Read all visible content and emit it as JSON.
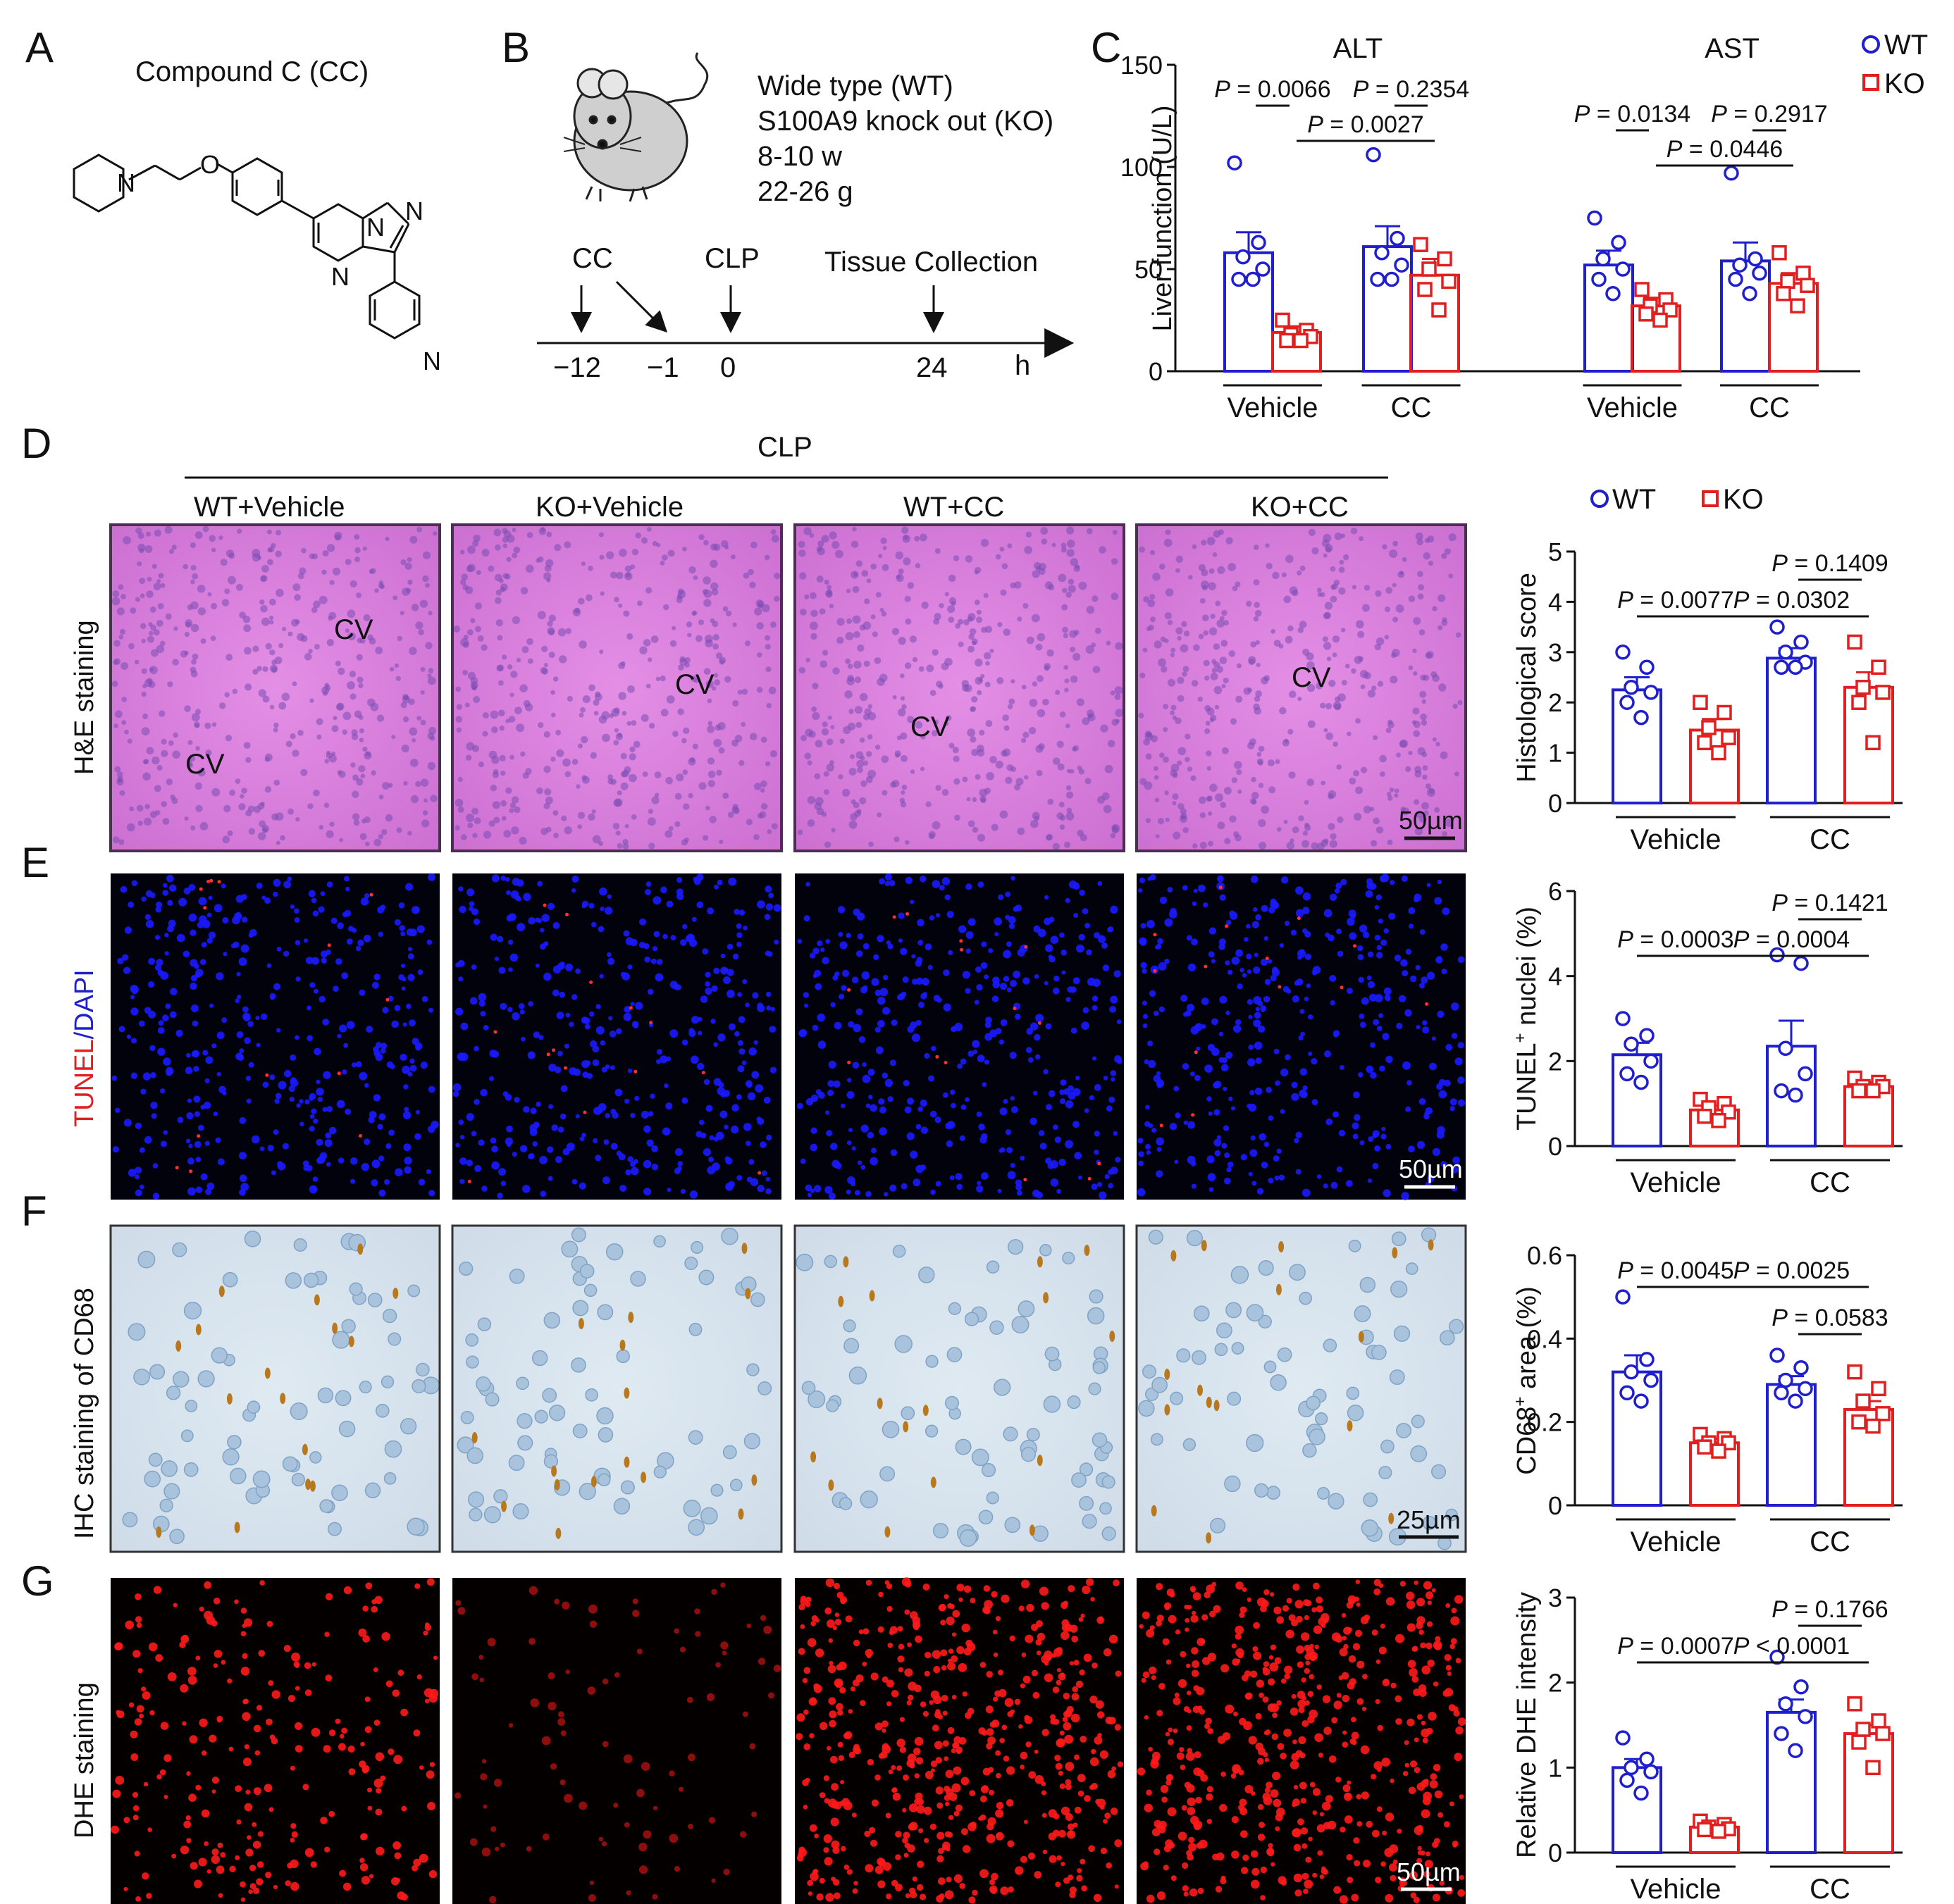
{
  "panel_letters": [
    "A",
    "B",
    "C",
    "D",
    "E",
    "F",
    "G"
  ],
  "panel_a": {
    "title": "Compound C (CC)",
    "atoms": [
      "N",
      "O",
      "N",
      "N",
      "N",
      "N"
    ]
  },
  "panel_b": {
    "info": [
      "Wide type (WT)",
      "S100A9 knock out (KO)",
      "8-10 w",
      "22-26 g"
    ],
    "events": [
      "CC",
      "CLP",
      "Tissue Collection"
    ],
    "ticks": [
      "−12",
      "−1",
      "0",
      "24"
    ],
    "unit": "h"
  },
  "legend": {
    "wt": "WT",
    "ko": "KO"
  },
  "colors": {
    "wt": "#1f1fd0",
    "ko": "#e02020"
  },
  "micro": {
    "header": "CLP",
    "groups": [
      "WT+Vehicle",
      "KO+Vehicle",
      "WT+CC",
      "KO+CC"
    ],
    "rows": [
      {
        "stain": "H&E staining",
        "scale": "50µm",
        "cv_labels": [
          "CV",
          "CV",
          "CV",
          "CV",
          "CV"
        ]
      },
      {
        "stain_parts": [
          "TUNEL",
          "/DAPI"
        ],
        "scale": "50µm"
      },
      {
        "stain": "IHC staining of CD68",
        "scale": "25µm"
      },
      {
        "stain": "DHE staining",
        "scale": "50µm"
      }
    ]
  },
  "chart_data": [
    {
      "type": "bar",
      "panel": "C",
      "ylabel": "Liver function (U/L)",
      "ylim": [
        0,
        150
      ],
      "yticks": [
        "0",
        "50",
        "100",
        "150"
      ],
      "subplots": [
        {
          "title": "ALT",
          "categories": [
            "Vehicle",
            "CC"
          ],
          "series": [
            {
              "name": "WT",
              "values": [
                58,
                61
              ],
              "sem": [
                10,
                10
              ],
              "points": [
                [
                  102,
                  63,
                  56,
                  50,
                  45,
                  45
                ],
                [
                  106,
                  65,
                  58,
                  52,
                  45,
                  45
                ]
              ]
            },
            {
              "name": "KO",
              "values": [
                19,
                47
              ],
              "sem": [
                3,
                8
              ],
              "points": [
                [
                  25,
                  20,
                  18,
                  17,
                  15,
                  15
                ],
                [
                  62,
                  55,
                  50,
                  44,
                  40,
                  30
                ]
              ]
            }
          ],
          "pvalues": [
            "P = 0.0066",
            "P = 0.2354",
            "P = 0.0027"
          ]
        },
        {
          "title": "AST",
          "categories": [
            "Vehicle",
            "CC"
          ],
          "series": [
            {
              "name": "WT",
              "values": [
                52,
                54
              ],
              "sem": [
                7,
                9
              ],
              "points": [
                [
                  75,
                  63,
                  55,
                  50,
                  45,
                  38
                ],
                [
                  97,
                  55,
                  52,
                  48,
                  45,
                  38
                ]
              ]
            },
            {
              "name": "KO",
              "values": [
                32,
                43
              ],
              "sem": [
                4,
                5
              ],
              "points": [
                [
                  40,
                  35,
                  32,
                  30,
                  28,
                  25
                ],
                [
                  58,
                  48,
                  44,
                  42,
                  38,
                  32
                ]
              ]
            }
          ],
          "pvalues": [
            "P = 0.0134",
            "P = 0.2917",
            "P = 0.0446"
          ]
        }
      ]
    },
    {
      "type": "bar",
      "panel": "D",
      "ylabel": "Histological score",
      "ylim": [
        0,
        5
      ],
      "yticks": [
        "0",
        "1",
        "2",
        "3",
        "4",
        "5"
      ],
      "categories": [
        "Vehicle",
        "CC"
      ],
      "series": [
        {
          "name": "WT",
          "values": [
            2.25,
            2.88
          ],
          "sem": [
            0.25,
            0.2
          ],
          "points": [
            [
              3.0,
              2.7,
              2.3,
              2.2,
              2.0,
              1.7
            ],
            [
              3.5,
              3.2,
              3.0,
              2.8,
              2.7,
              2.7
            ]
          ]
        },
        {
          "name": "KO",
          "values": [
            1.45,
            2.3
          ],
          "sem": [
            0.22,
            0.3
          ],
          "points": [
            [
              2.0,
              1.8,
              1.5,
              1.3,
              1.2,
              1.0
            ],
            [
              3.2,
              2.7,
              2.3,
              2.2,
              2.0,
              1.2
            ]
          ]
        }
      ],
      "pvalues": [
        "P = 0.1409",
        "P = 0.0077",
        "P = 0.0302"
      ]
    },
    {
      "type": "bar",
      "panel": "E",
      "ylabel_parts": [
        "TUNEL",
        "+",
        " nuclei (%)"
      ],
      "ylim": [
        0,
        6
      ],
      "yticks": [
        "0",
        "2",
        "4",
        "6"
      ],
      "categories": [
        "Vehicle",
        "CC"
      ],
      "series": [
        {
          "name": "WT",
          "values": [
            2.15,
            2.35
          ],
          "sem": [
            0.28,
            0.6
          ],
          "points": [
            [
              3.0,
              2.6,
              2.4,
              2.0,
              1.7,
              1.5
            ],
            [
              4.5,
              4.3,
              2.3,
              1.7,
              1.3,
              1.2
            ]
          ]
        },
        {
          "name": "KO",
          "values": [
            0.85,
            1.4
          ],
          "sem": [
            0.1,
            0.1
          ],
          "points": [
            [
              1.1,
              1.0,
              0.9,
              0.8,
              0.7,
              0.6
            ],
            [
              1.6,
              1.5,
              1.4,
              1.4,
              1.3,
              1.3
            ]
          ]
        }
      ],
      "pvalues": [
        "P = 0.1421",
        "P = 0.0003",
        "P = 0.0004"
      ]
    },
    {
      "type": "bar",
      "panel": "F",
      "ylabel_parts": [
        "CD68",
        "+",
        " area (%)"
      ],
      "ylim": [
        0,
        0.6
      ],
      "yticks": [
        "0",
        "0.2",
        "0.4",
        "0.6"
      ],
      "categories": [
        "Vehicle",
        "CC"
      ],
      "series": [
        {
          "name": "WT",
          "values": [
            0.32,
            0.29
          ],
          "sem": [
            0.04,
            0.02
          ],
          "points": [
            [
              0.5,
              0.35,
              0.32,
              0.3,
              0.27,
              0.25
            ],
            [
              0.36,
              0.33,
              0.3,
              0.28,
              0.27,
              0.25
            ]
          ]
        },
        {
          "name": "KO",
          "values": [
            0.15,
            0.23
          ],
          "sem": [
            0.01,
            0.02
          ],
          "points": [
            [
              0.17,
              0.16,
              0.15,
              0.15,
              0.14,
              0.13
            ],
            [
              0.32,
              0.28,
              0.25,
              0.22,
              0.2,
              0.19
            ]
          ]
        }
      ],
      "pvalues": [
        "P = 0.0045",
        "P = 0.0025",
        "P = 0.0583"
      ]
    },
    {
      "type": "bar",
      "panel": "G",
      "ylabel": "Relative DHE intensity",
      "ylim": [
        0,
        3
      ],
      "yticks": [
        "0",
        "1",
        "2",
        "3"
      ],
      "categories": [
        "Vehicle",
        "CC"
      ],
      "series": [
        {
          "name": "WT",
          "values": [
            1.0,
            1.65
          ],
          "sem": [
            0.1,
            0.15
          ],
          "points": [
            [
              1.35,
              1.1,
              1.0,
              0.95,
              0.85,
              0.7
            ],
            [
              2.3,
              1.95,
              1.75,
              1.6,
              1.4,
              1.2
            ]
          ]
        },
        {
          "name": "KO",
          "values": [
            0.3,
            1.4
          ],
          "sem": [
            0.03,
            0.1
          ],
          "points": [
            [
              0.37,
              0.33,
              0.3,
              0.28,
              0.27,
              0.25
            ],
            [
              1.75,
              1.55,
              1.45,
              1.4,
              1.3,
              1.0
            ]
          ]
        }
      ],
      "pvalues": [
        "P = 0.1766",
        "P = 0.0007",
        "P < 0.0001"
      ]
    }
  ]
}
